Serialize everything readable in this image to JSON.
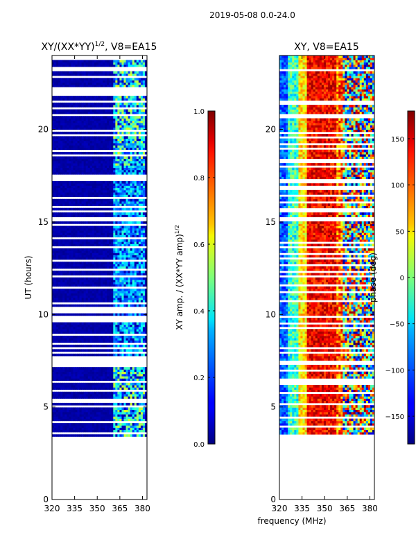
{
  "suptitle": "2019-05-08 0.0-24.0",
  "colors": {
    "background": "#ffffff",
    "axis": "#000000",
    "missing_row": "#ffffff"
  },
  "chart_data": [
    {
      "type": "heatmap",
      "title_main": "XY/(XX*YY)",
      "title_exp": "1/2",
      "title_suffix": ", V8=EA15",
      "xlabel": "",
      "ylabel": "UT (hours)",
      "xlim": [
        320,
        383
      ],
      "ylim": [
        0,
        24
      ],
      "xticks": [
        "320",
        "335",
        "350",
        "365",
        "380"
      ],
      "xtick_values": [
        320,
        335,
        350,
        365,
        380
      ],
      "yticks": [
        "0",
        "5",
        "10",
        "15",
        "20"
      ],
      "ytick_values": [
        0,
        5,
        10,
        15,
        20
      ],
      "data_ut_range": [
        3.4,
        24
      ],
      "colorbar": {
        "label_main": "XY amp. / (XX*YY amp)",
        "label_exp": "1/2",
        "colormap": "jet",
        "range": [
          0.0,
          1.0
        ],
        "ticks": [
          "0.0",
          "0.2",
          "0.4",
          "0.6",
          "0.8",
          "1.0"
        ],
        "tick_values": [
          0.0,
          0.2,
          0.4,
          0.6,
          0.8,
          1.0
        ]
      }
    },
    {
      "type": "heatmap",
      "title_main": "XY, V8=EA15",
      "xlabel": "frequency (MHz)",
      "ylabel": "",
      "xlim": [
        320,
        383
      ],
      "ylim": [
        0,
        24
      ],
      "xticks": [
        "320",
        "335",
        "350",
        "365",
        "380"
      ],
      "xtick_values": [
        320,
        335,
        350,
        365,
        380
      ],
      "yticks": [
        "0",
        "5",
        "10",
        "15",
        "20"
      ],
      "ytick_values": [
        0,
        5,
        10,
        15,
        20
      ],
      "data_ut_range": [
        3.4,
        24
      ],
      "colorbar": {
        "label_main": "phase (deg)",
        "colormap": "jet",
        "range": [
          -180,
          180
        ],
        "ticks": [
          "−150",
          "−100",
          "−50",
          "0",
          "50",
          "100",
          "150"
        ],
        "tick_values": [
          -150,
          -100,
          -50,
          0,
          50,
          100,
          150
        ]
      }
    }
  ]
}
